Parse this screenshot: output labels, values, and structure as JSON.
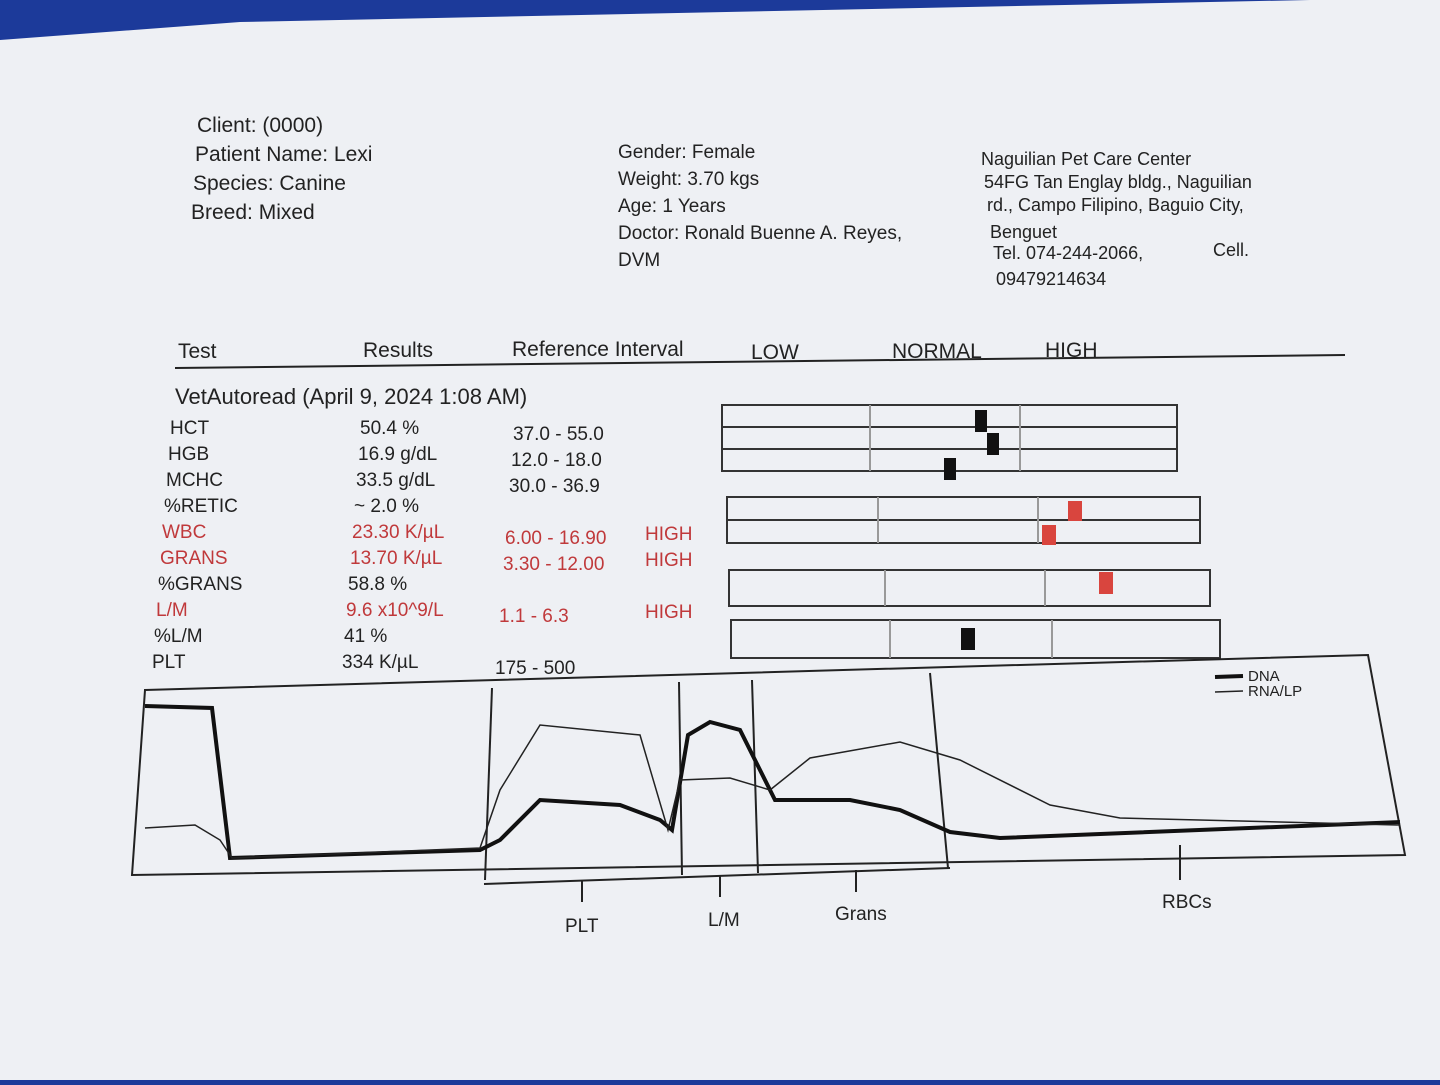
{
  "patient": [
    "Client:  (0000)",
    "Patient Name: Lexi",
    "Species: Canine",
    "Breed: Mixed"
  ],
  "visit": [
    "Gender: Female",
    "Weight: 3.70 kgs",
    "Age: 1 Years",
    "Doctor: Ronald Buenne A. Reyes,",
    "DVM"
  ],
  "clinic": [
    "Naguilian Pet Care Center",
    "54FG Tan Englay bldg., Naguilian",
    "rd., Campo Filipino, Baguio City,",
    "Benguet",
    "Tel. 074-244-2066,",
    "Cell.",
    "09479214634"
  ],
  "table": {
    "header": [
      "Test",
      "Results",
      "Reference Interval",
      "LOW",
      "NORMAL",
      "HIGH"
    ],
    "section": "VetAutoread (April 9, 2024 1:08 AM)",
    "rows": [
      {
        "test": "HCT",
        "result": "50.4 %",
        "reference": "37.0 - 55.0"
      },
      {
        "test": "HGB",
        "result": "16.9 g/dL",
        "reference": "12.0 - 18.0"
      },
      {
        "test": "MCHC",
        "result": "33.5 g/dL",
        "reference": "30.0 - 36.9"
      },
      {
        "test": "%RETIC",
        "result": "~ 2.0 %"
      },
      {
        "test": "WBC",
        "result": "23.30 K/µL",
        "reference": "6.00 - 16.90",
        "flag": "HIGH"
      },
      {
        "test": "GRANS",
        "result": "13.70 K/µL",
        "reference": "3.30 - 12.00",
        "flag": "HIGH"
      },
      {
        "test": "%GRANS",
        "result": "58.8 %"
      },
      {
        "test": "L/M",
        "result": "9.6 x10^9/L",
        "reference": "1.1 - 6.3",
        "flag": "HIGH"
      },
      {
        "test": "%L/M",
        "result": "41 %"
      },
      {
        "test": "PLT",
        "result": "334 K/µL",
        "reference": "175 - 500"
      }
    ]
  },
  "histogram": {
    "labels": [
      "PLT",
      "L/M",
      "Grans",
      "RBCs"
    ],
    "legend": [
      "DNA",
      "RNA/LP"
    ]
  }
}
